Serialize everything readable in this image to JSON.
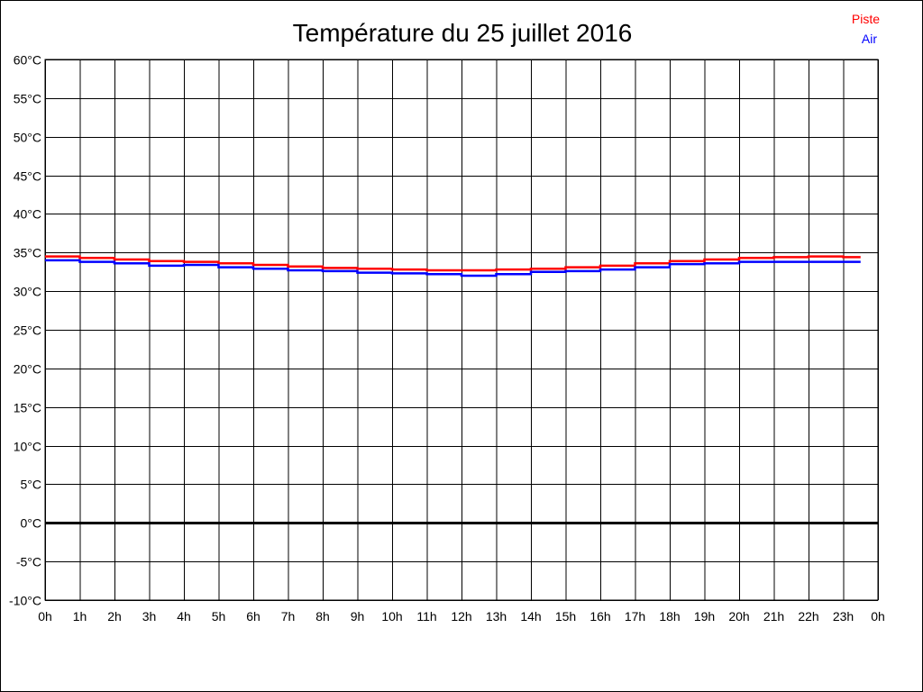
{
  "chart_data": {
    "type": "line",
    "title": "Température du 25 juillet 2016",
    "xlabel": "",
    "ylabel": "",
    "xlim": [
      0,
      24
    ],
    "ylim": [
      -10,
      60
    ],
    "grid": true,
    "legend_position": "top-right",
    "x_ticks": [
      "0h",
      "1h",
      "2h",
      "3h",
      "4h",
      "5h",
      "6h",
      "7h",
      "8h",
      "9h",
      "10h",
      "11h",
      "12h",
      "13h",
      "14h",
      "15h",
      "16h",
      "17h",
      "18h",
      "19h",
      "20h",
      "21h",
      "22h",
      "23h",
      "0h"
    ],
    "y_ticks": [
      "60°C",
      "55°C",
      "50°C",
      "45°C",
      "40°C",
      "35°C",
      "30°C",
      "25°C",
      "20°C",
      "15°C",
      "10°C",
      "5°C",
      "0°C",
      "-5°C",
      "-10°C"
    ],
    "x": [
      0,
      1,
      2,
      3,
      4,
      5,
      6,
      7,
      8,
      9,
      10,
      11,
      12,
      13,
      14,
      15,
      16,
      17,
      18,
      19,
      20,
      21,
      22,
      23,
      23.5
    ],
    "series": [
      {
        "name": "Piste",
        "color": "#ff0000",
        "values": [
          34.5,
          34.3,
          34.1,
          33.9,
          33.8,
          33.6,
          33.4,
          33.2,
          33.0,
          32.9,
          32.8,
          32.7,
          32.7,
          32.8,
          32.9,
          33.1,
          33.3,
          33.6,
          33.9,
          34.1,
          34.3,
          34.4,
          34.5,
          34.4,
          34.4
        ]
      },
      {
        "name": "Air",
        "color": "#0000ff",
        "values": [
          34.0,
          33.8,
          33.6,
          33.3,
          33.4,
          33.1,
          32.9,
          32.7,
          32.6,
          32.4,
          32.3,
          32.2,
          32.0,
          32.2,
          32.5,
          32.6,
          32.8,
          33.1,
          33.5,
          33.6,
          33.8,
          33.8,
          33.8,
          33.8,
          33.8
        ]
      }
    ]
  }
}
